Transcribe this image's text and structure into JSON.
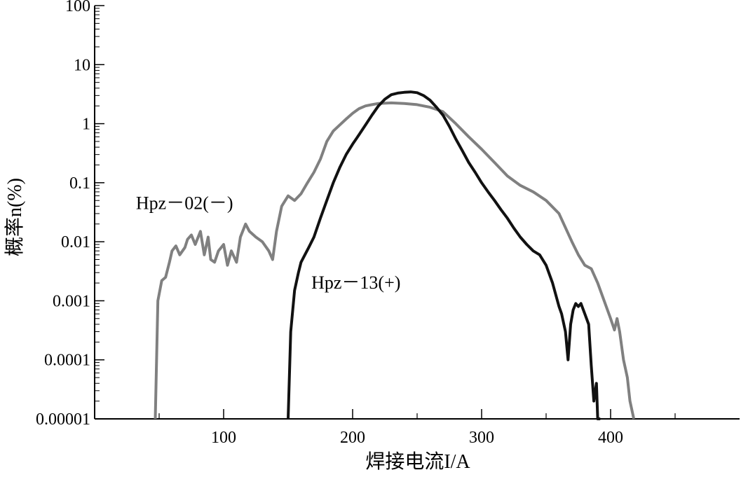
{
  "chart_data": {
    "type": "line",
    "title": "",
    "xlabel": "焊接电流I/A",
    "ylabel": "概率n(%)",
    "xlim": [
      0,
      500
    ],
    "ylim": [
      1e-05,
      100
    ],
    "yscale": "log",
    "grid": false,
    "x_ticks": [
      100,
      200,
      300,
      400
    ],
    "x_minor_ticks": [
      50,
      150,
      250,
      350,
      450
    ],
    "y_ticks": [
      {
        "value": 100,
        "label": "100"
      },
      {
        "value": 10,
        "label": "10"
      },
      {
        "value": 1,
        "label": "1"
      },
      {
        "value": 0.1,
        "label": "0.1"
      },
      {
        "value": 0.01,
        "label": "0.01"
      },
      {
        "value": 0.001,
        "label": "0.001"
      },
      {
        "value": 0.0001,
        "label": "0.0001"
      },
      {
        "value": 1e-05,
        "label": "0.00001"
      }
    ],
    "series": [
      {
        "name": "Hpz－02(－)",
        "color": "#808080",
        "x": [
          47,
          49,
          52,
          55,
          58,
          60,
          63,
          66,
          70,
          72,
          75,
          78,
          82,
          85,
          88,
          90,
          93,
          96,
          100,
          103,
          106,
          110,
          113,
          117,
          120,
          125,
          130,
          135,
          138,
          141,
          145,
          150,
          155,
          160,
          165,
          170,
          175,
          180,
          185,
          190,
          195,
          200,
          205,
          210,
          215,
          220,
          230,
          240,
          250,
          260,
          270,
          280,
          290,
          300,
          310,
          320,
          330,
          340,
          350,
          360,
          370,
          375,
          380,
          385,
          390,
          395,
          400,
          403,
          405,
          407,
          410,
          413,
          415,
          418
        ],
        "y": [
          1e-05,
          0.001,
          0.0022,
          0.0025,
          0.0045,
          0.007,
          0.0085,
          0.006,
          0.008,
          0.011,
          0.013,
          0.009,
          0.015,
          0.006,
          0.012,
          0.005,
          0.0045,
          0.007,
          0.009,
          0.004,
          0.007,
          0.0045,
          0.012,
          0.02,
          0.015,
          0.012,
          0.01,
          0.007,
          0.005,
          0.015,
          0.04,
          0.06,
          0.05,
          0.065,
          0.1,
          0.15,
          0.25,
          0.5,
          0.75,
          0.95,
          1.2,
          1.5,
          1.8,
          2.0,
          2.1,
          2.2,
          2.25,
          2.2,
          2.1,
          1.9,
          1.6,
          1.0,
          0.6,
          0.37,
          0.22,
          0.13,
          0.09,
          0.07,
          0.05,
          0.03,
          0.01,
          0.006,
          0.004,
          0.0035,
          0.002,
          0.001,
          0.0005,
          0.00032,
          0.0005,
          0.0003,
          0.0001,
          5e-05,
          2e-05,
          1e-05
        ]
      },
      {
        "name": "Hpz－13(+)",
        "color": "#111111",
        "x": [
          150,
          152,
          155,
          158,
          160,
          163,
          166,
          170,
          175,
          180,
          185,
          190,
          195,
          200,
          205,
          210,
          215,
          220,
          225,
          230,
          235,
          240,
          245,
          250,
          255,
          260,
          265,
          270,
          275,
          280,
          285,
          290,
          295,
          300,
          305,
          310,
          315,
          320,
          325,
          330,
          335,
          340,
          345,
          350,
          355,
          360,
          362,
          365,
          367,
          369,
          371,
          373,
          375,
          377,
          380,
          383,
          385,
          387,
          389,
          390,
          392
        ],
        "y": [
          1e-05,
          0.0003,
          0.0015,
          0.003,
          0.0045,
          0.006,
          0.008,
          0.012,
          0.025,
          0.05,
          0.1,
          0.18,
          0.3,
          0.45,
          0.65,
          0.95,
          1.4,
          2.0,
          2.6,
          3.1,
          3.3,
          3.4,
          3.45,
          3.35,
          3.0,
          2.5,
          1.9,
          1.4,
          0.9,
          0.55,
          0.35,
          0.22,
          0.15,
          0.1,
          0.07,
          0.05,
          0.035,
          0.025,
          0.017,
          0.012,
          0.009,
          0.007,
          0.006,
          0.004,
          0.002,
          0.0008,
          0.0006,
          0.0003,
          0.0001,
          0.0004,
          0.0007,
          0.0009,
          0.0008,
          0.0009,
          0.0006,
          0.0004,
          8e-05,
          2e-05,
          4e-05,
          1e-05,
          1e-05
        ]
      }
    ],
    "annotations": [
      {
        "text": "Hpz－02(－)",
        "x": 32,
        "y": 0.036
      },
      {
        "text": "Hpz－13(+)",
        "x": 168,
        "y": 0.0016
      }
    ]
  }
}
